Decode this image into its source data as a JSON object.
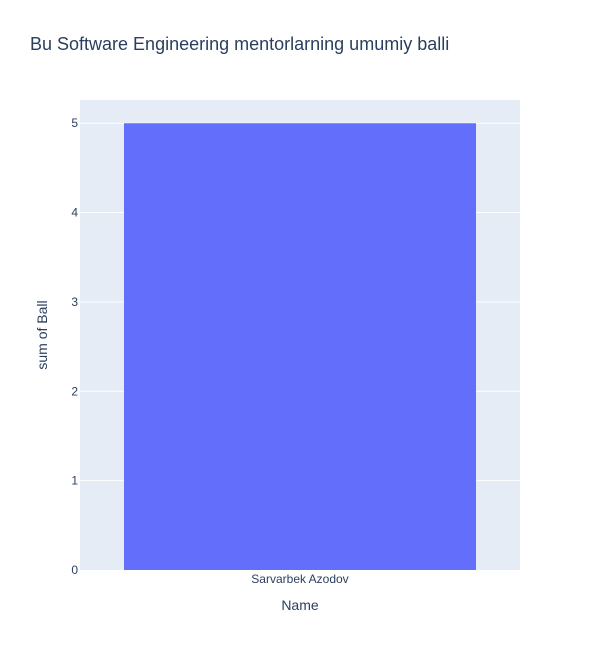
{
  "chart_data": {
    "type": "bar",
    "title": "Bu Software Engineering mentorlarning umumiy balli",
    "xlabel": "Name",
    "ylabel": "sum of Ball",
    "categories": [
      "Sarvarbek Azodov"
    ],
    "series": [
      {
        "values": [
          5
        ]
      }
    ],
    "ylim": [
      0,
      5.26
    ],
    "yticks": [
      0,
      1,
      2,
      3,
      4,
      5
    ],
    "grid": true,
    "colors": {
      "bar": "#636efa",
      "plot_bg": "#e5ecf6",
      "grid": "#ffffff",
      "text": "#2a3f5f"
    }
  }
}
